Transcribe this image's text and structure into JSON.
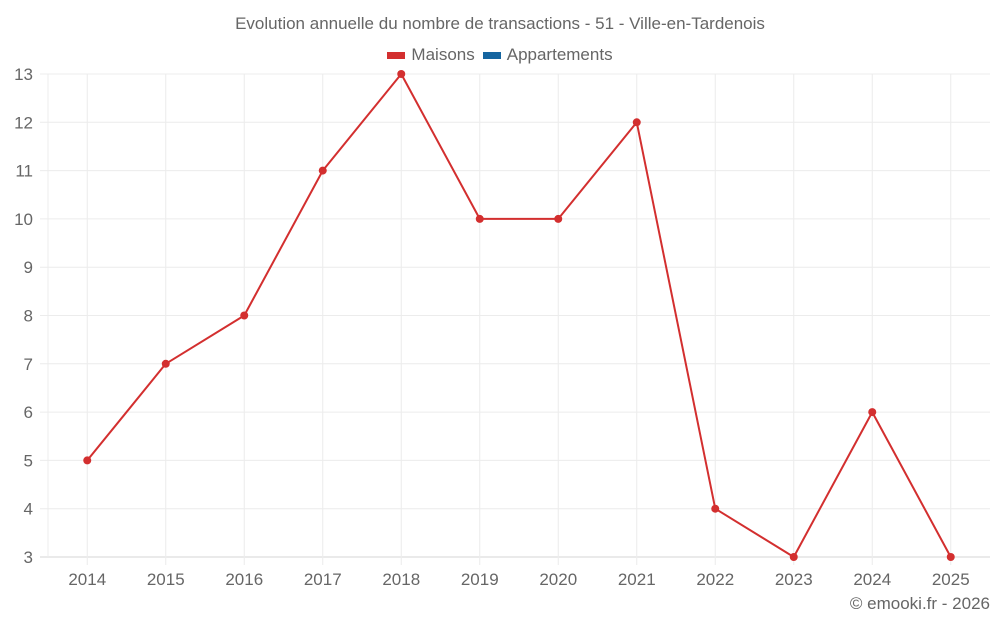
{
  "title": "Evolution annuelle du nombre de transactions - 51 - Ville-en-Tardenois",
  "legend": [
    {
      "label": "Maisons",
      "color": "#d32f2f"
    },
    {
      "label": "Appartements",
      "color": "#1565a0"
    }
  ],
  "credit": "© emooki.fr - 2026",
  "chart_data": {
    "type": "line",
    "title": "Evolution annuelle du nombre de transactions - 51 - Ville-en-Tardenois",
    "xlabel": "",
    "ylabel": "",
    "categories": [
      "2014",
      "2015",
      "2016",
      "2017",
      "2018",
      "2019",
      "2020",
      "2021",
      "2022",
      "2023",
      "2024",
      "2025"
    ],
    "series": [
      {
        "name": "Maisons",
        "color": "#d32f2f",
        "values": [
          5,
          7,
          8,
          11,
          13,
          10,
          10,
          12,
          4,
          3,
          6,
          3
        ]
      },
      {
        "name": "Appartements",
        "color": "#1565a0",
        "values": []
      }
    ],
    "ylim": [
      3,
      13
    ],
    "yticks": [
      3,
      4,
      5,
      6,
      7,
      8,
      9,
      10,
      11,
      12,
      13
    ],
    "grid": true,
    "legend_position": "top"
  }
}
